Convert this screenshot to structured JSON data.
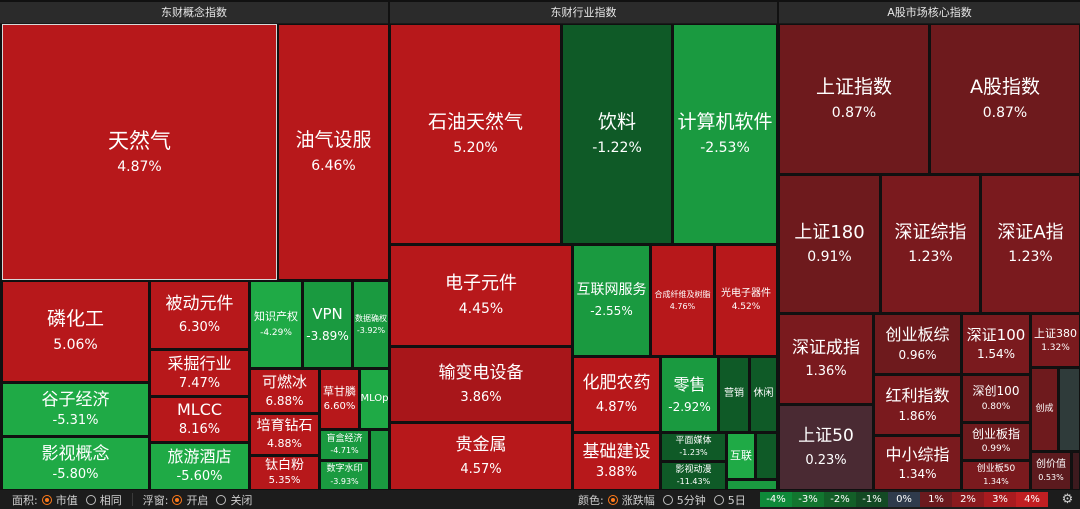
{
  "headers": [
    {
      "id": "concept",
      "label": "东财概念指数"
    },
    {
      "id": "industry",
      "label": "东财行业指数"
    },
    {
      "id": "core",
      "label": "A股市场核心指数"
    }
  ],
  "tiles": [
    {
      "id": "tianranqi",
      "name": "天然气",
      "pct": "4.87%"
    },
    {
      "id": "youqi",
      "name": "油气设服",
      "pct": "6.46%"
    },
    {
      "id": "linhuagong",
      "name": "磷化工",
      "pct": "5.06%"
    },
    {
      "id": "beidong",
      "name": "被动元件",
      "pct": "6.30%"
    },
    {
      "id": "caijue",
      "name": "采掘行业",
      "pct": "7.47%"
    },
    {
      "id": "mlcc",
      "name": "MLCC",
      "pct": "8.16%"
    },
    {
      "id": "guzi",
      "name": "谷子经济",
      "pct": "-5.31%"
    },
    {
      "id": "yingshi",
      "name": "影视概念",
      "pct": "-5.80%"
    },
    {
      "id": "lvyou",
      "name": "旅游酒店",
      "pct": "-5.60%"
    },
    {
      "id": "zhishi",
      "name": "知识产权",
      "pct": "-4.29%"
    },
    {
      "id": "vpn",
      "name": "VPN",
      "pct": "-3.89%"
    },
    {
      "id": "shujuquan",
      "name": "数据确权",
      "pct": "-3.92%"
    },
    {
      "id": "keranbing",
      "name": "可燃冰",
      "pct": "6.88%"
    },
    {
      "id": "caogan",
      "name": "草甘膦",
      "pct": "6.60%"
    },
    {
      "id": "mlop",
      "name": "MLOp",
      "pct": ""
    },
    {
      "id": "peiyu",
      "name": "培育钻石",
      "pct": "4.88%"
    },
    {
      "id": "manghe",
      "name": "盲盒经济",
      "pct": "-4.71%"
    },
    {
      "id": "taibai",
      "name": "钛白粉",
      "pct": "5.35%"
    },
    {
      "id": "shuzishui",
      "name": "数字水印",
      "pct": "-3.93%"
    },
    {
      "id": "shiyou",
      "name": "石油天然气",
      "pct": "5.20%"
    },
    {
      "id": "yinliao",
      "name": "饮料",
      "pct": "-1.22%"
    },
    {
      "id": "jisuanji",
      "name": "计算机软件",
      "pct": "-2.53%"
    },
    {
      "id": "dianzi",
      "name": "电子元件",
      "pct": "4.45%"
    },
    {
      "id": "hulianwang",
      "name": "互联网服务",
      "pct": "-2.55%"
    },
    {
      "id": "hecheng",
      "name": "合成纤维及树脂",
      "pct": "4.76%"
    },
    {
      "id": "guangdian",
      "name": "光电子器件",
      "pct": "4.52%"
    },
    {
      "id": "shubian",
      "name": "输变电设备",
      "pct": "3.86%"
    },
    {
      "id": "huafei",
      "name": "化肥农药",
      "pct": "4.87%"
    },
    {
      "id": "lingshou",
      "name": "零售",
      "pct": "-2.92%"
    },
    {
      "id": "yingxiao",
      "name": "营销",
      "pct": ""
    },
    {
      "id": "xiuxian",
      "name": "休闲",
      "pct": ""
    },
    {
      "id": "guijinshu",
      "name": "贵金属",
      "pct": "4.57%"
    },
    {
      "id": "jichu",
      "name": "基础建设",
      "pct": "3.88%"
    },
    {
      "id": "pingmian",
      "name": "平面媒体",
      "pct": "-1.23%"
    },
    {
      "id": "hulian2",
      "name": "互联",
      "pct": ""
    },
    {
      "id": "yingshidonghua",
      "name": "影视动漫",
      "pct": "-11.43%"
    },
    {
      "id": "shangzheng",
      "name": "上证指数",
      "pct": "0.87%"
    },
    {
      "id": "agu",
      "name": "A股指数",
      "pct": "0.87%"
    },
    {
      "id": "sz180",
      "name": "上证180",
      "pct": "0.91%"
    },
    {
      "id": "szzz",
      "name": "深证综指",
      "pct": "1.23%"
    },
    {
      "id": "szaz",
      "name": "深证A指",
      "pct": "1.23%"
    },
    {
      "id": "szcz",
      "name": "深证成指",
      "pct": "1.36%"
    },
    {
      "id": "cybz",
      "name": "创业板综",
      "pct": "0.96%"
    },
    {
      "id": "sz100",
      "name": "深证100",
      "pct": "1.54%"
    },
    {
      "id": "sz380",
      "name": "上证380",
      "pct": "1.32%"
    },
    {
      "id": "hongli",
      "name": "红利指数",
      "pct": "1.86%"
    },
    {
      "id": "sc100",
      "name": "深创100",
      "pct": "0.80%"
    },
    {
      "id": "chuangxin",
      "name": "创成",
      "pct": ""
    },
    {
      "id": "sz50",
      "name": "上证50",
      "pct": "0.23%"
    },
    {
      "id": "zxzz",
      "name": "中小综指",
      "pct": "1.34%"
    },
    {
      "id": "cybzhi",
      "name": "创业板指",
      "pct": "0.99%"
    },
    {
      "id": "cyb50",
      "name": "创业板50",
      "pct": "1.34%"
    },
    {
      "id": "chuangjia",
      "name": "创价值",
      "pct": "0.53%"
    }
  ],
  "footer": {
    "area_label": "面积:",
    "area_opt1": "市值",
    "area_opt2": "相同",
    "float_label": "浮窗:",
    "float_opt1": "开启",
    "float_opt2": "关闭",
    "color_label": "颜色:",
    "color_opt1": "涨跌幅",
    "color_opt2": "5分钟",
    "color_opt3": "5日",
    "legend": [
      {
        "label": "-4%",
        "color": "#0e8a39"
      },
      {
        "label": "-3%",
        "color": "#12762f"
      },
      {
        "label": "-2%",
        "color": "#135f28"
      },
      {
        "label": "-1%",
        "color": "#134a24"
      },
      {
        "label": "0%",
        "color": "#2f3b4c"
      },
      {
        "label": "1%",
        "color": "#6b1a1e"
      },
      {
        "label": "2%",
        "color": "#8a1a1e"
      },
      {
        "label": "3%",
        "color": "#a81b1f"
      },
      {
        "label": "4%",
        "color": "#c01f22"
      }
    ],
    "settings_icon": "gear-icon"
  }
}
